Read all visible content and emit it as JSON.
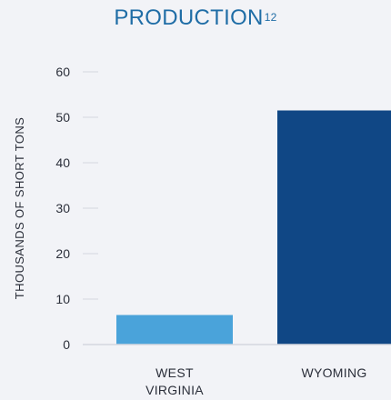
{
  "title": {
    "text": "PRODUCTION",
    "footnote": "12"
  },
  "colors": {
    "title": "#1f6da6",
    "bar_west_virginia": "#4aa3da",
    "bar_wyoming": "#104785",
    "grid": "#d4d7df",
    "text": "#2b2f3a",
    "background": "#f2f3f7"
  },
  "chart_data": {
    "type": "bar",
    "title": "PRODUCTION",
    "xlabel": "",
    "ylabel": "THOUSANDS OF SHORT TONS",
    "ylim": [
      0,
      60
    ],
    "yticks": [
      0,
      10,
      20,
      30,
      40,
      50,
      60
    ],
    "grid": false,
    "categories": [
      "WEST VIRGINIA",
      "WYOMING"
    ],
    "category_lines": [
      [
        "WEST",
        "VIRGINIA"
      ],
      [
        "WYOMING"
      ]
    ],
    "values": [
      6.5,
      51.5
    ]
  }
}
